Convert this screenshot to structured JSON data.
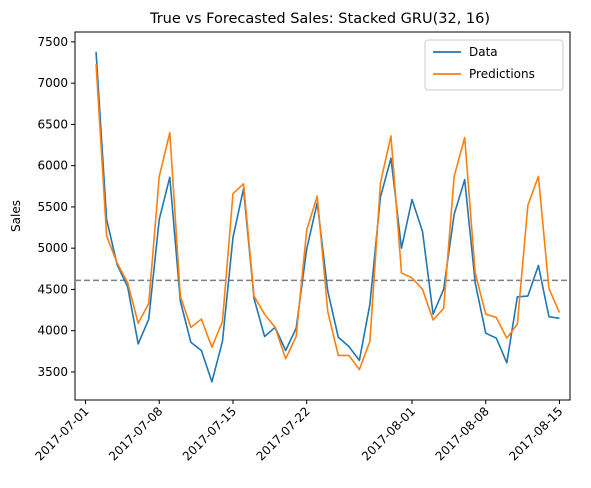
{
  "chart_data": {
    "type": "line",
    "title": "True vs Forecasted Sales: Stacked GRU(32, 16)",
    "xlabel": "",
    "ylabel": "Sales",
    "x_start": "2017-07-02",
    "x_end": "2017-08-15",
    "xlim": [
      "2017-06-30",
      "2017-08-16"
    ],
    "ylim": [
      3160,
      7620
    ],
    "x_ticks": [
      "2017-07-01",
      "2017-07-08",
      "2017-07-15",
      "2017-07-22",
      "2017-08-01",
      "2017-08-08",
      "2017-08-15"
    ],
    "y_ticks": [
      3500,
      4000,
      4500,
      5000,
      5500,
      6000,
      6500,
      7000,
      7500
    ],
    "grid": false,
    "legend_position": "upper right",
    "reference_line": {
      "y": 4610,
      "style": "dashed",
      "color": "#808080"
    },
    "series": [
      {
        "name": "Data",
        "color": "#1f77b4",
        "values": [
          7380,
          5350,
          4800,
          4530,
          3840,
          4140,
          5350,
          5860,
          4360,
          3860,
          3760,
          3380,
          3870,
          5130,
          5720,
          4390,
          3930,
          4040,
          3760,
          4030,
          4990,
          5550,
          4480,
          3920,
          3810,
          3640,
          4320,
          5620,
          6090,
          5000,
          5590,
          5200,
          4200,
          4500,
          5410,
          5830,
          4580,
          3970,
          3910,
          3610,
          4410,
          4420,
          4790,
          4170,
          4150
        ]
      },
      {
        "name": "Predictions",
        "color": "#ff7f0e",
        "values": [
          7230,
          5150,
          4820,
          4580,
          4090,
          4330,
          5870,
          6400,
          4420,
          4040,
          4140,
          3800,
          4110,
          5660,
          5780,
          4420,
          4200,
          4040,
          3660,
          3930,
          5220,
          5630,
          4230,
          3700,
          3700,
          3530,
          3870,
          5790,
          6360,
          4700,
          4640,
          4500,
          4130,
          4270,
          5870,
          6340,
          4700,
          4200,
          4160,
          3910,
          4080,
          5520,
          5870,
          4510,
          4220
        ]
      }
    ]
  }
}
